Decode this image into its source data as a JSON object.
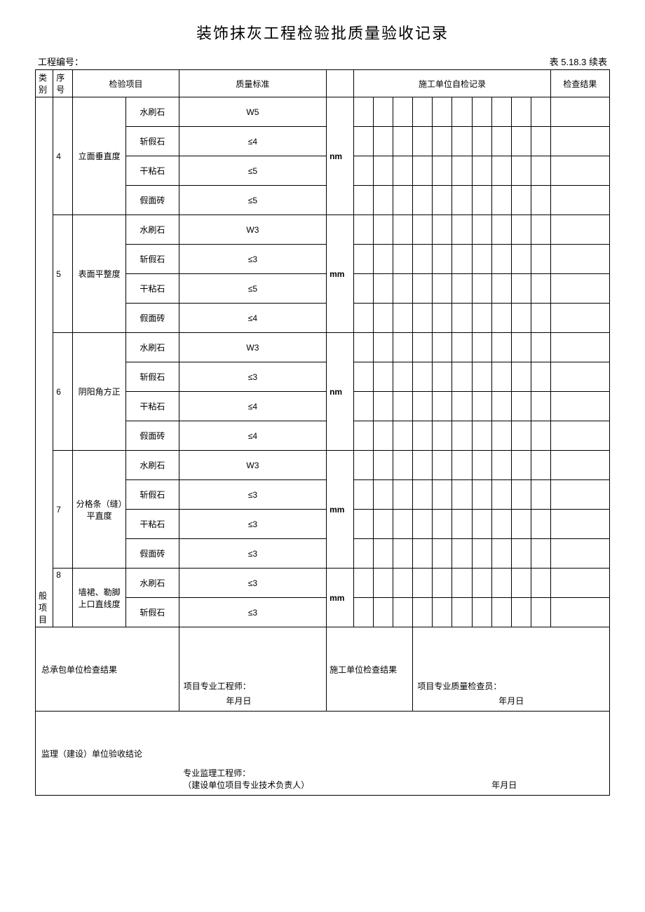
{
  "title": "装饰抹灰工程检验批质量验收记录",
  "project_no_label": "工程编号：",
  "table_no": "表 5.18.3 续表",
  "headers": {
    "category": "类别",
    "seq": "序号",
    "inspection_item": "检验项目",
    "quality_std": "质量标准",
    "self_inspection": "施工单位自检记录",
    "check_result": "检查结果"
  },
  "category_label": "般项目",
  "groups": [
    {
      "seq": "4",
      "item": "立面垂直度",
      "unit": "nm",
      "rows": [
        {
          "sub": "水刷石",
          "std": "W5"
        },
        {
          "sub": "斩假石",
          "std": "≤4"
        },
        {
          "sub": "干粘石",
          "std": "≤5"
        },
        {
          "sub": "假面砖",
          "std": "≤5"
        }
      ]
    },
    {
      "seq": "5",
      "item": "表面平整度",
      "unit": "mm",
      "rows": [
        {
          "sub": "水刷石",
          "std": "W3"
        },
        {
          "sub": "斩假石",
          "std": "≤3"
        },
        {
          "sub": "干粘石",
          "std": "≤5"
        },
        {
          "sub": "假面砖",
          "std": "≤4"
        }
      ]
    },
    {
      "seq": "6",
      "item": "阴阳角方正",
      "unit": "nm",
      "rows": [
        {
          "sub": "水刷石",
          "std": "W3"
        },
        {
          "sub": "斩假石",
          "std": "≤3"
        },
        {
          "sub": "干粘石",
          "std": "≤4"
        },
        {
          "sub": "假面砖",
          "std": "≤4"
        }
      ]
    },
    {
      "seq": "7",
      "item": "分格条（缝）平直度",
      "unit": "mm",
      "rows": [
        {
          "sub": "水刷石",
          "std": "W3"
        },
        {
          "sub": "斩假石",
          "std": "≤3"
        },
        {
          "sub": "干粘石",
          "std": "≤3"
        },
        {
          "sub": "假面砖",
          "std": "≤3"
        }
      ]
    },
    {
      "seq": "8",
      "item": "墙裙、勒脚上口直线度",
      "unit": "mm",
      "rows": [
        {
          "sub": "水刷石",
          "std": "≤3"
        },
        {
          "sub": "斩假石",
          "std": "≤3"
        }
      ]
    }
  ],
  "signatures": {
    "contractor_result": "总承包单位检查结果",
    "construction_result": "施工单位检查结果",
    "project_engineer": "项目专业工程师：",
    "quality_inspector": "项目专业质量检查员：",
    "date": "年月日",
    "supervisor_conclusion": "监理（建设）单位验收结论",
    "supervisor_engineer": "专业监理工程师：",
    "supervisor_sub": "（建设单位项目专业技术负责人）"
  }
}
